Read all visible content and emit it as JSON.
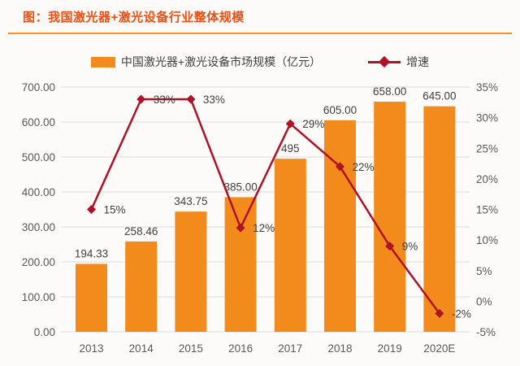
{
  "header": {
    "title": "图：我国激光器+激光设备行业整体规模",
    "title_color": "#F04E12",
    "underline_color": "#F7941D"
  },
  "legend": {
    "items": [
      {
        "label": "中国激光器+激光设备市场规模（亿元）",
        "marker": "bar-swatch",
        "color": "#F28A1C"
      },
      {
        "label": "增速",
        "marker": "line-diamond",
        "color": "#B01224"
      }
    ]
  },
  "chart_data": {
    "type": "bar+line combo",
    "categories": [
      "2013",
      "2014",
      "2015",
      "2016",
      "2017",
      "2018",
      "2019",
      "2020E"
    ],
    "series": [
      {
        "name": "中国激光器+激光设备市场规模（亿元）",
        "type": "bar",
        "axis": "left",
        "color": "#F28A1C",
        "values": [
          194.33,
          258.46,
          343.75,
          385.0,
          495,
          605.0,
          658.0,
          645.0
        ],
        "labels": [
          "194.33",
          "258.46",
          "343.75",
          "385.00",
          "495",
          "605.00",
          "658.00",
          "645.00"
        ]
      },
      {
        "name": "增速",
        "type": "line",
        "axis": "right",
        "color": "#B01224",
        "values": [
          15,
          33,
          33,
          12,
          29,
          22,
          9,
          -2
        ],
        "labels": [
          "15%",
          "33%",
          "33%",
          "12%",
          "29%",
          "22%",
          "9%",
          "-2%"
        ]
      }
    ],
    "left_axis": {
      "min": 0,
      "max": 700,
      "step": 100,
      "tick_labels": [
        "0.00",
        "100.00",
        "200.00",
        "300.00",
        "400.00",
        "500.00",
        "600.00",
        "700.00"
      ]
    },
    "right_axis": {
      "min": -5,
      "max": 35,
      "step": 5,
      "tick_labels": [
        "-5%",
        "0%",
        "5%",
        "10%",
        "15%",
        "20%",
        "25%",
        "30%",
        "35%"
      ]
    },
    "grid": true,
    "grid_color": "#DBDBDB",
    "axis_text_color": "#595959",
    "label_text_color": "#3F3F3F",
    "legend_position": "top"
  }
}
